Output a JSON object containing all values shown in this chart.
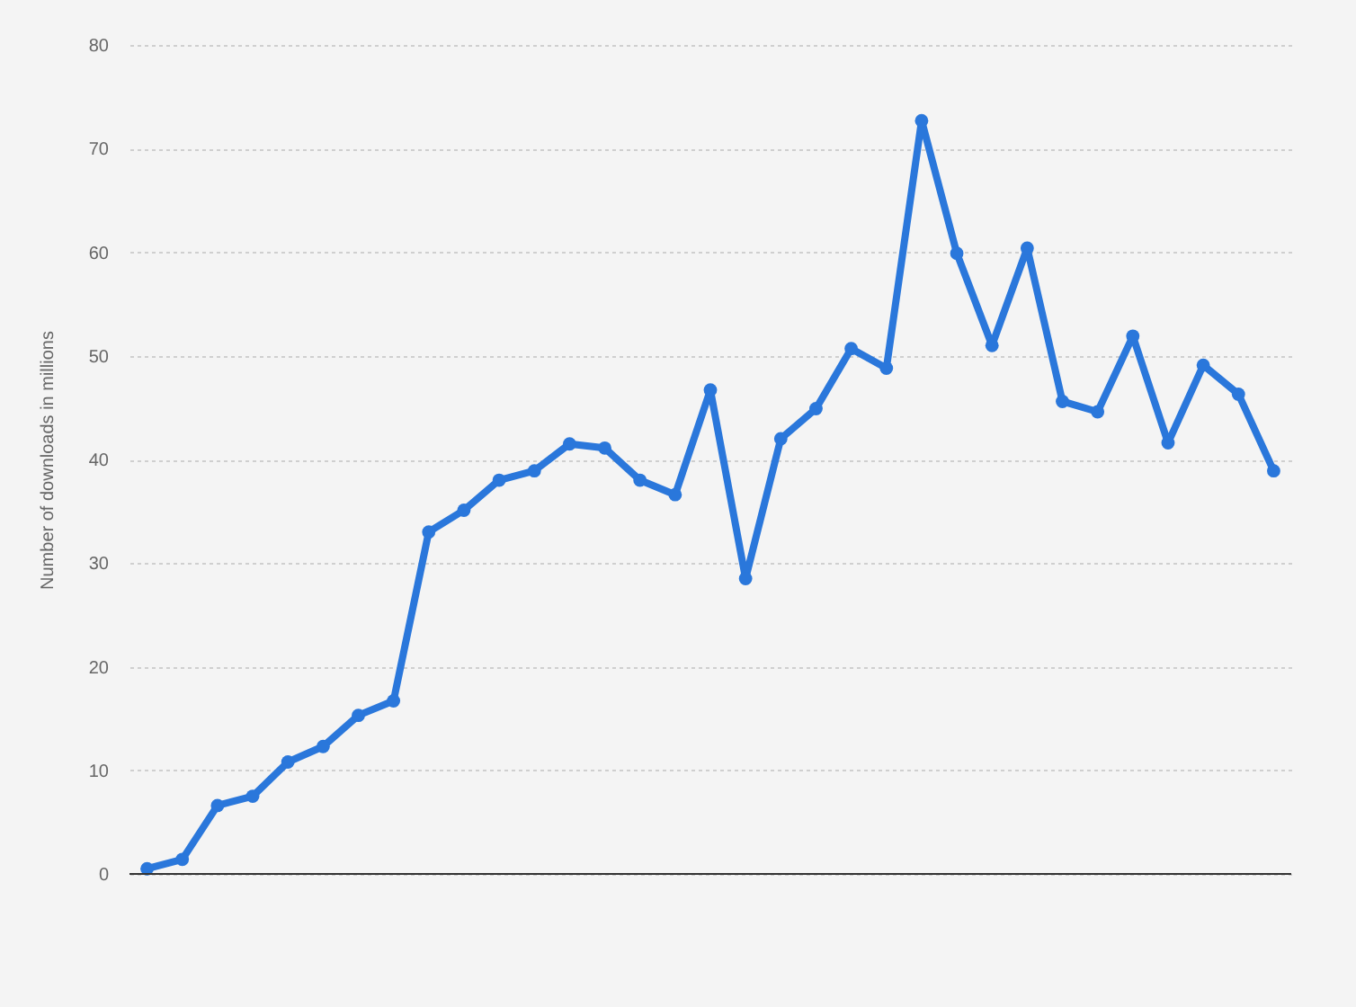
{
  "chart_data": {
    "type": "line",
    "ylabel": "Number of downloads in millions",
    "categories": [
      null,
      null,
      null,
      null,
      null,
      null,
      null,
      null,
      null,
      null,
      null,
      null,
      null,
      null,
      null,
      null,
      null,
      null,
      null,
      null,
      null,
      null,
      null,
      null,
      null,
      null,
      null,
      null,
      null,
      null,
      null,
      null,
      null
    ],
    "series": [
      {
        "color": "#2a77db",
        "values": [
          0.5,
          1.4,
          6.6,
          7.5,
          10.8,
          12.3,
          15.3,
          16.7,
          33.0,
          35.1,
          38.0,
          38.9,
          41.5,
          41.1,
          38.0,
          36.6,
          46.7,
          28.5,
          42.0,
          44.9,
          50.7,
          48.8,
          72.7,
          59.9,
          51.0,
          60.4,
          45.6,
          44.6,
          51.9,
          41.6,
          49.1,
          46.3,
          38.9
        ]
      }
    ],
    "ylim": [
      0,
      80
    ],
    "yticks": [
      0,
      10,
      20,
      30,
      40,
      50,
      60,
      70,
      80
    ],
    "grid": "y",
    "marker": "circle",
    "line_style": "solid",
    "legend": false
  }
}
